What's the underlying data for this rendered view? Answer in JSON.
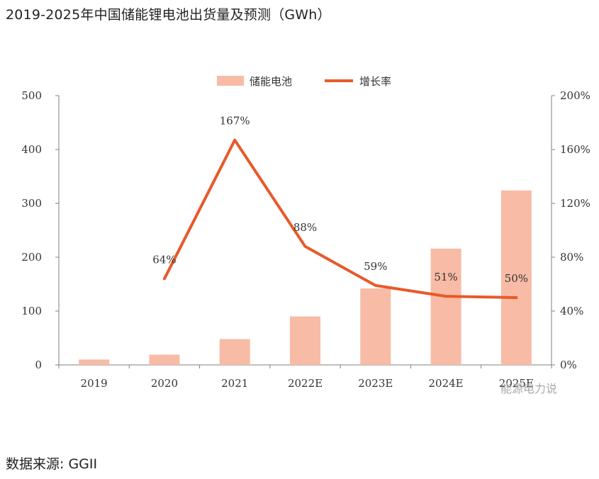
{
  "title": "2019-2025年中国储能锂电池出货量及预测（GWh）",
  "source": "数据来源: GGII",
  "watermark": "能源电力说",
  "colors": {
    "bar": "#f8bba6",
    "line": "#e8592a",
    "axis": "#7f7f7f"
  },
  "chart_data": {
    "type": "bar",
    "categories": [
      "2019",
      "2020",
      "2021",
      "2022E",
      "2023E",
      "2024E",
      "2025E"
    ],
    "series": [
      {
        "name": "储能电池",
        "type": "bar",
        "axis": "left",
        "values": [
          10,
          19,
          48,
          90,
          142,
          216,
          324
        ]
      },
      {
        "name": "增长率",
        "type": "line",
        "axis": "right",
        "values": [
          null,
          64,
          167,
          88,
          59,
          51,
          50
        ],
        "labels": [
          "",
          "64%",
          "167%",
          "88%",
          "59%",
          "51%",
          "50%"
        ]
      }
    ],
    "ylim_left": [
      0,
      500
    ],
    "yticks_left": [
      "0",
      "100",
      "200",
      "300",
      "400",
      "500"
    ],
    "ylim_right": [
      0,
      200
    ],
    "yticks_right": [
      "0%",
      "40%",
      "80%",
      "120%",
      "160%",
      "200%"
    ],
    "legend_position": "top-center",
    "grid": false
  }
}
